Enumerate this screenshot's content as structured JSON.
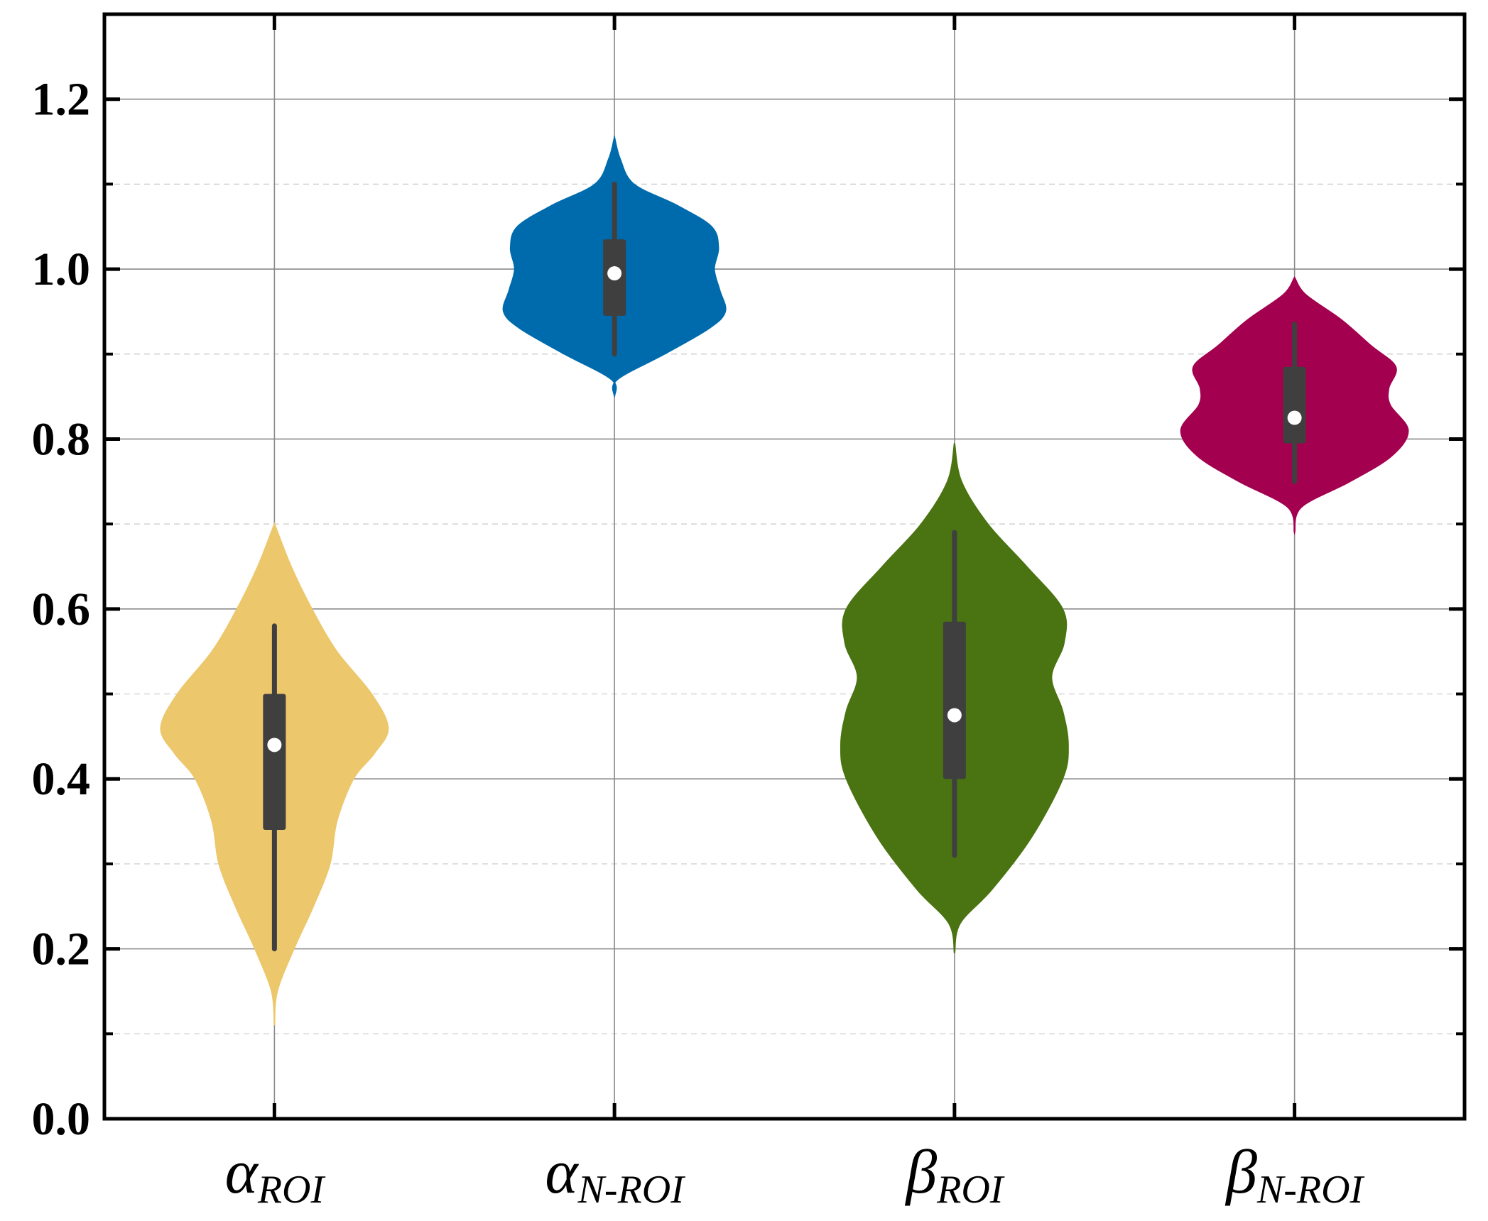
{
  "chart_data": {
    "type": "violin",
    "title": "",
    "xlabel": "",
    "ylabel": "",
    "ylim": [
      0.0,
      1.3
    ],
    "yticks": [
      0.0,
      0.2,
      0.4,
      0.6,
      0.8,
      1.0,
      1.2
    ],
    "ytick_labels": [
      "0.0",
      "0.2",
      "0.4",
      "0.6",
      "0.8",
      "1.0",
      "1.2"
    ],
    "y_minor_gridlines": [
      0.1,
      0.3,
      0.5,
      0.7,
      0.9,
      1.1
    ],
    "grid": true,
    "legend": "none",
    "categories": [
      {
        "symbol": "α",
        "subscript": "ROI"
      },
      {
        "symbol": "α",
        "subscript": "N-ROI"
      },
      {
        "symbol": "β",
        "subscript": "ROI"
      },
      {
        "symbol": "β",
        "subscript": "N-ROI"
      }
    ],
    "series": [
      {
        "color": "#ECC76B",
        "min": 0.2,
        "q1": 0.34,
        "median": 0.44,
        "q3": 0.5,
        "max": 0.58,
        "kde_range": [
          0.11,
          0.7
        ],
        "density": [
          [
            0.11,
            0.0
          ],
          [
            0.15,
            0.02
          ],
          [
            0.2,
            0.14
          ],
          [
            0.25,
            0.28
          ],
          [
            0.3,
            0.4
          ],
          [
            0.35,
            0.45
          ],
          [
            0.4,
            0.57
          ],
          [
            0.43,
            0.72
          ],
          [
            0.46,
            0.82
          ],
          [
            0.5,
            0.7
          ],
          [
            0.55,
            0.45
          ],
          [
            0.6,
            0.27
          ],
          [
            0.65,
            0.12
          ],
          [
            0.7,
            0.0
          ]
        ]
      },
      {
        "color": "#006BAC",
        "min": 0.9,
        "q1": 0.945,
        "median": 0.995,
        "q3": 1.035,
        "max": 1.1,
        "kde_range": [
          0.85,
          1.155
        ],
        "density": [
          [
            0.85,
            0.0
          ],
          [
            0.87,
            0.02
          ],
          [
            0.9,
            0.36
          ],
          [
            0.93,
            0.68
          ],
          [
            0.95,
            0.8
          ],
          [
            0.975,
            0.76
          ],
          [
            1.0,
            0.72
          ],
          [
            1.025,
            0.75
          ],
          [
            1.05,
            0.7
          ],
          [
            1.075,
            0.45
          ],
          [
            1.1,
            0.14
          ],
          [
            1.13,
            0.04
          ],
          [
            1.155,
            0.0
          ]
        ]
      },
      {
        "color": "#4A7311",
        "min": 0.31,
        "q1": 0.4,
        "median": 0.475,
        "q3": 0.585,
        "max": 0.69,
        "kde_range": [
          0.195,
          0.795
        ],
        "density": [
          [
            0.195,
            0.0
          ],
          [
            0.23,
            0.04
          ],
          [
            0.27,
            0.27
          ],
          [
            0.33,
            0.55
          ],
          [
            0.4,
            0.78
          ],
          [
            0.44,
            0.82
          ],
          [
            0.48,
            0.78
          ],
          [
            0.52,
            0.7
          ],
          [
            0.56,
            0.79
          ],
          [
            0.6,
            0.78
          ],
          [
            0.65,
            0.52
          ],
          [
            0.7,
            0.24
          ],
          [
            0.75,
            0.05
          ],
          [
            0.795,
            0.0
          ]
        ]
      },
      {
        "color": "#A3004F",
        "min": 0.75,
        "q1": 0.795,
        "median": 0.825,
        "q3": 0.885,
        "max": 0.935,
        "kde_range": [
          0.69,
          0.99
        ],
        "density": [
          [
            0.69,
            0.0
          ],
          [
            0.72,
            0.05
          ],
          [
            0.75,
            0.4
          ],
          [
            0.78,
            0.7
          ],
          [
            0.81,
            0.82
          ],
          [
            0.84,
            0.69
          ],
          [
            0.86,
            0.68
          ],
          [
            0.885,
            0.73
          ],
          [
            0.91,
            0.55
          ],
          [
            0.94,
            0.34
          ],
          [
            0.97,
            0.08
          ],
          [
            0.99,
            0.0
          ]
        ]
      }
    ]
  }
}
